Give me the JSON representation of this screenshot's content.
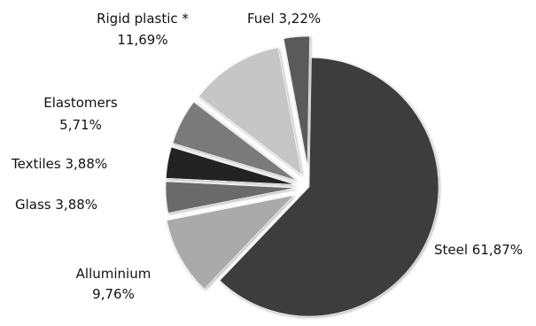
{
  "chart_data": {
    "type": "pie",
    "exploded": true,
    "slices": [
      {
        "label": "Steel",
        "label_line1": "Steel 61,87%",
        "label_line2": "",
        "value": 61.87,
        "color": "#3c3c3c"
      },
      {
        "label": "Alluminium",
        "label_line1": "Alluminium",
        "label_line2": "9,76%",
        "value": 9.76,
        "color": "#aaaaaa"
      },
      {
        "label": "Glass",
        "label_line1": "Glass 3,88%",
        "label_line2": "",
        "value": 3.88,
        "color": "#6b6b6b"
      },
      {
        "label": "Textiles",
        "label_line1": "Textiles 3,88%",
        "label_line2": "",
        "value": 3.88,
        "color": "#222222"
      },
      {
        "label": "Elastomers",
        "label_line1": "Elastomers",
        "label_line2": "5,71%",
        "value": 5.71,
        "color": "#7a7a7a"
      },
      {
        "label": "Rigid plastic *",
        "label_line1": "Rigid plastic *",
        "label_line2": "11,69%",
        "value": 11.69,
        "color": "#c6c6c6"
      },
      {
        "label": "Fuel",
        "label_line1": "Fuel 3,22%",
        "label_line2": "",
        "value": 3.22,
        "color": "#5a5a5a"
      }
    ]
  }
}
